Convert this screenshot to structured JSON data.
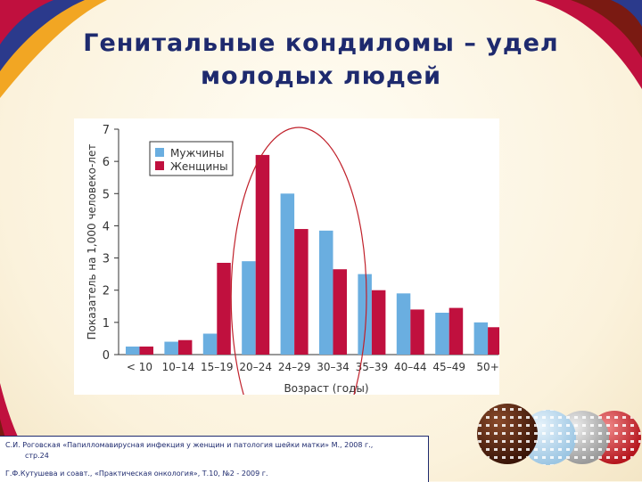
{
  "slide": {
    "title_line1": "Генитальные кондиломы – удел",
    "title_line2": "молодых людей",
    "colors": {
      "title": "#1e2a6e",
      "men": "#6aaee0",
      "women": "#c0103e",
      "highlight": "#c0202a"
    },
    "sources": {
      "line1": "С.И. Роговская «Папилломавирусная инфекция у женщин и патология шейки матки» М., 2008 г.,",
      "line2": "стр.24",
      "line3": "Г.Ф.Кутушева и соавт., «Практическая онкология», Т.10, №2 - 2009 г."
    }
  },
  "chart_data": {
    "type": "bar",
    "title": "",
    "xlabel": "Возраст (годы)",
    "ylabel": "Показатель на 1,000 человеко-лет",
    "ylim": [
      0,
      7
    ],
    "yticks": [
      "0",
      "1",
      "2",
      "3",
      "4",
      "5",
      "6",
      "7"
    ],
    "categories": [
      "< 10",
      "10–14",
      "15–19",
      "20–24",
      "24–29",
      "30–34",
      "35–39",
      "40–44",
      "45–49",
      "50+"
    ],
    "series": [
      {
        "name": "Мужчины",
        "color": "#6aaee0",
        "values": [
          0.25,
          0.4,
          0.65,
          2.9,
          5.0,
          3.85,
          2.5,
          1.9,
          1.3,
          1.0
        ]
      },
      {
        "name": "Женщины",
        "color": "#c0103e",
        "values": [
          0.25,
          0.45,
          2.85,
          6.2,
          3.9,
          2.65,
          2.0,
          1.4,
          1.45,
          0.85
        ]
      }
    ],
    "legend_position": "top-left",
    "grid": false,
    "highlight": {
      "shape": "ellipse",
      "categories": [
        "20–24",
        "24–29",
        "30–34"
      ]
    }
  }
}
